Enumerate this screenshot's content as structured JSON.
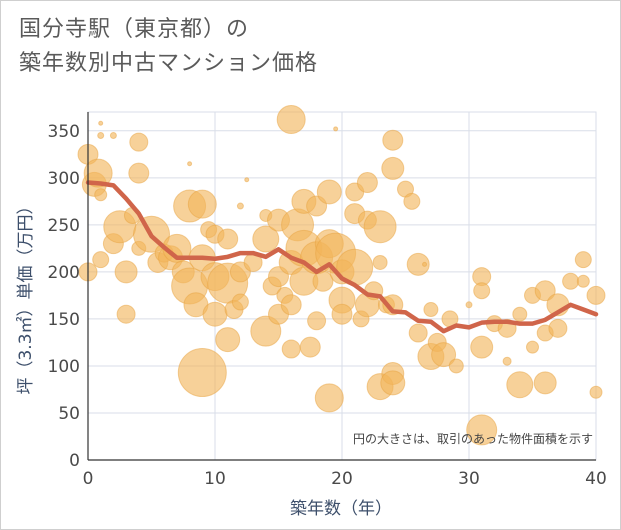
{
  "title_line1": "国分寺駅（東京都）の",
  "title_line2": "築年数別中古マンション価格",
  "chart_data": {
    "type": "scatter",
    "xlabel": "築年数（年）",
    "ylabel": "坪（3.3㎡）単価（万円）",
    "xlim": [
      0,
      40
    ],
    "ylim": [
      0,
      370
    ],
    "xticks": [
      0,
      10,
      20,
      30,
      40
    ],
    "yticks": [
      0,
      50,
      100,
      150,
      200,
      250,
      300,
      350
    ],
    "grid": true,
    "annotation": "円の大きさは、取引のあった物件面積を示す",
    "colors": {
      "bubble_fill": "#f2b45a",
      "bubble_stroke": "#e8a341",
      "line": "#d0654a",
      "grid": "#d9dee8",
      "axis": "#333333"
    },
    "trend_line": {
      "name": "",
      "x": [
        0,
        1,
        2,
        3,
        4,
        5,
        6,
        7,
        8,
        9,
        10,
        11,
        12,
        13,
        14,
        15,
        16,
        17,
        18,
        19,
        20,
        21,
        22,
        23,
        24,
        25,
        26,
        27,
        28,
        29,
        30,
        31,
        32,
        33,
        34,
        35,
        36,
        37,
        38,
        39,
        40
      ],
      "y": [
        295,
        294,
        292,
        278,
        262,
        238,
        226,
        215,
        215,
        215,
        214,
        216,
        220,
        220,
        216,
        224,
        215,
        210,
        200,
        208,
        193,
        186,
        176,
        174,
        158,
        157,
        148,
        147,
        137,
        143,
        141,
        146,
        147,
        147,
        145,
        145,
        149,
        157,
        165,
        160,
        155
      ]
    },
    "bubbles": [
      {
        "x": 0,
        "y": 325,
        "s": 10
      },
      {
        "x": 0,
        "y": 200,
        "s": 9
      },
      {
        "x": 0.5,
        "y": 293,
        "s": 12
      },
      {
        "x": 0.8,
        "y": 305,
        "s": 14
      },
      {
        "x": 1,
        "y": 345,
        "s": 3
      },
      {
        "x": 1,
        "y": 358,
        "s": 2
      },
      {
        "x": 1,
        "y": 282,
        "s": 6
      },
      {
        "x": 1,
        "y": 213,
        "s": 8
      },
      {
        "x": 2,
        "y": 345,
        "s": 3
      },
      {
        "x": 2,
        "y": 230,
        "s": 10
      },
      {
        "x": 2.5,
        "y": 248,
        "s": 16
      },
      {
        "x": 3,
        "y": 200,
        "s": 11
      },
      {
        "x": 3,
        "y": 155,
        "s": 9
      },
      {
        "x": 3.5,
        "y": 260,
        "s": 8
      },
      {
        "x": 4,
        "y": 305,
        "s": 10
      },
      {
        "x": 4,
        "y": 338,
        "s": 9
      },
      {
        "x": 4,
        "y": 225,
        "s": 7
      },
      {
        "x": 5,
        "y": 240,
        "s": 18
      },
      {
        "x": 5.5,
        "y": 210,
        "s": 10
      },
      {
        "x": 6,
        "y": 220,
        "s": 9
      },
      {
        "x": 6.5,
        "y": 215,
        "s": 12
      },
      {
        "x": 7,
        "y": 225,
        "s": 14
      },
      {
        "x": 7.5,
        "y": 200,
        "s": 11
      },
      {
        "x": 8,
        "y": 270,
        "s": 16
      },
      {
        "x": 8,
        "y": 185,
        "s": 18
      },
      {
        "x": 8,
        "y": 315,
        "s": 2
      },
      {
        "x": 8.5,
        "y": 165,
        "s": 12
      },
      {
        "x": 9,
        "y": 272,
        "s": 14
      },
      {
        "x": 9,
        "y": 93,
        "s": 24
      },
      {
        "x": 9,
        "y": 215,
        "s": 13
      },
      {
        "x": 9.5,
        "y": 245,
        "s": 8
      },
      {
        "x": 10,
        "y": 155,
        "s": 12
      },
      {
        "x": 10,
        "y": 195,
        "s": 14
      },
      {
        "x": 10,
        "y": 240,
        "s": 9
      },
      {
        "x": 11,
        "y": 128,
        "s": 12
      },
      {
        "x": 11,
        "y": 188,
        "s": 20
      },
      {
        "x": 11,
        "y": 235,
        "s": 10
      },
      {
        "x": 11.5,
        "y": 160,
        "s": 9
      },
      {
        "x": 12,
        "y": 200,
        "s": 10
      },
      {
        "x": 12,
        "y": 168,
        "s": 8
      },
      {
        "x": 12,
        "y": 270,
        "s": 3
      },
      {
        "x": 12.5,
        "y": 298,
        "s": 2
      },
      {
        "x": 13,
        "y": 210,
        "s": 9
      },
      {
        "x": 14,
        "y": 137,
        "s": 15
      },
      {
        "x": 14,
        "y": 235,
        "s": 13
      },
      {
        "x": 14,
        "y": 260,
        "s": 6
      },
      {
        "x": 14.5,
        "y": 185,
        "s": 9
      },
      {
        "x": 15,
        "y": 255,
        "s": 11
      },
      {
        "x": 15,
        "y": 195,
        "s": 10
      },
      {
        "x": 15,
        "y": 155,
        "s": 10
      },
      {
        "x": 15.5,
        "y": 175,
        "s": 8
      },
      {
        "x": 16,
        "y": 362,
        "s": 14
      },
      {
        "x": 16,
        "y": 210,
        "s": 12
      },
      {
        "x": 16,
        "y": 165,
        "s": 10
      },
      {
        "x": 16,
        "y": 118,
        "s": 9
      },
      {
        "x": 16.5,
        "y": 250,
        "s": 16
      },
      {
        "x": 17,
        "y": 275,
        "s": 12
      },
      {
        "x": 17,
        "y": 225,
        "s": 18
      },
      {
        "x": 17,
        "y": 190,
        "s": 14
      },
      {
        "x": 17.5,
        "y": 120,
        "s": 10
      },
      {
        "x": 18,
        "y": 270,
        "s": 10
      },
      {
        "x": 18,
        "y": 215,
        "s": 16
      },
      {
        "x": 18,
        "y": 148,
        "s": 9
      },
      {
        "x": 18.5,
        "y": 190,
        "s": 10
      },
      {
        "x": 19,
        "y": 285,
        "s": 12
      },
      {
        "x": 19,
        "y": 230,
        "s": 14
      },
      {
        "x": 19,
        "y": 66,
        "s": 14
      },
      {
        "x": 19.5,
        "y": 220,
        "s": 20
      },
      {
        "x": 19.5,
        "y": 352,
        "s": 2
      },
      {
        "x": 20,
        "y": 200,
        "s": 12
      },
      {
        "x": 20,
        "y": 170,
        "s": 13
      },
      {
        "x": 20,
        "y": 155,
        "s": 10
      },
      {
        "x": 21,
        "y": 285,
        "s": 9
      },
      {
        "x": 21,
        "y": 262,
        "s": 10
      },
      {
        "x": 21,
        "y": 205,
        "s": 18
      },
      {
        "x": 21.5,
        "y": 150,
        "s": 8
      },
      {
        "x": 22,
        "y": 295,
        "s": 10
      },
      {
        "x": 22,
        "y": 255,
        "s": 9
      },
      {
        "x": 22,
        "y": 165,
        "s": 12
      },
      {
        "x": 22.5,
        "y": 180,
        "s": 9
      },
      {
        "x": 23,
        "y": 248,
        "s": 16
      },
      {
        "x": 23,
        "y": 210,
        "s": 7
      },
      {
        "x": 23,
        "y": 78,
        "s": 13
      },
      {
        "x": 23.5,
        "y": 165,
        "s": 8
      },
      {
        "x": 24,
        "y": 340,
        "s": 10
      },
      {
        "x": 24,
        "y": 310,
        "s": 11
      },
      {
        "x": 24,
        "y": 165,
        "s": 10
      },
      {
        "x": 24,
        "y": 92,
        "s": 11
      },
      {
        "x": 24,
        "y": 82,
        "s": 12
      },
      {
        "x": 25,
        "y": 288,
        "s": 8
      },
      {
        "x": 25.5,
        "y": 275,
        "s": 8
      },
      {
        "x": 26,
        "y": 208,
        "s": 11
      },
      {
        "x": 26,
        "y": 135,
        "s": 9
      },
      {
        "x": 26.5,
        "y": 208,
        "s": 2
      },
      {
        "x": 27,
        "y": 160,
        "s": 7
      },
      {
        "x": 27,
        "y": 110,
        "s": 13
      },
      {
        "x": 27.5,
        "y": 125,
        "s": 9
      },
      {
        "x": 28,
        "y": 112,
        "s": 12
      },
      {
        "x": 28.5,
        "y": 150,
        "s": 8
      },
      {
        "x": 29,
        "y": 100,
        "s": 7
      },
      {
        "x": 30,
        "y": 165,
        "s": 3
      },
      {
        "x": 31,
        "y": 195,
        "s": 9
      },
      {
        "x": 31,
        "y": 180,
        "s": 8
      },
      {
        "x": 31,
        "y": 120,
        "s": 11
      },
      {
        "x": 31,
        "y": 32,
        "s": 15
      },
      {
        "x": 32,
        "y": 145,
        "s": 8
      },
      {
        "x": 33,
        "y": 140,
        "s": 9
      },
      {
        "x": 33,
        "y": 105,
        "s": 4
      },
      {
        "x": 34,
        "y": 80,
        "s": 13
      },
      {
        "x": 34,
        "y": 155,
        "s": 7
      },
      {
        "x": 35,
        "y": 175,
        "s": 8
      },
      {
        "x": 35,
        "y": 120,
        "s": 6
      },
      {
        "x": 36,
        "y": 180,
        "s": 10
      },
      {
        "x": 36,
        "y": 135,
        "s": 8
      },
      {
        "x": 36,
        "y": 82,
        "s": 11
      },
      {
        "x": 37,
        "y": 165,
        "s": 11
      },
      {
        "x": 37,
        "y": 140,
        "s": 9
      },
      {
        "x": 38,
        "y": 190,
        "s": 8
      },
      {
        "x": 39,
        "y": 213,
        "s": 8
      },
      {
        "x": 39,
        "y": 190,
        "s": 6
      },
      {
        "x": 40,
        "y": 175,
        "s": 9
      },
      {
        "x": 40,
        "y": 72,
        "s": 6
      }
    ]
  }
}
